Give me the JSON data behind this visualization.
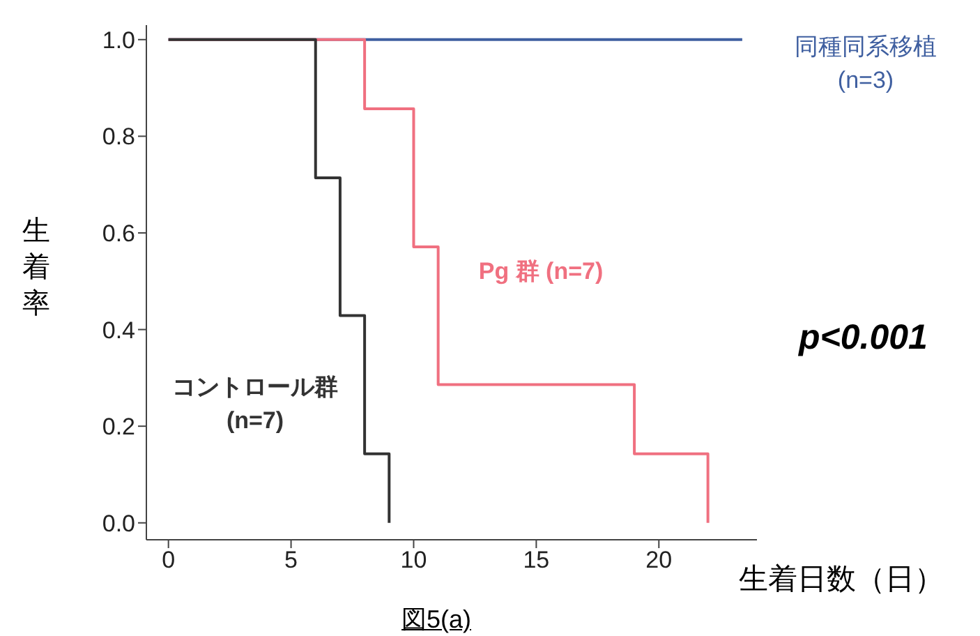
{
  "chart_data": {
    "type": "step",
    "xlabel": "生着日数（日）",
    "ylabel": "生着率",
    "xlim": [
      -0.9,
      24
    ],
    "xticks": [
      0,
      5,
      10,
      15,
      20
    ],
    "ylim": [
      -0.035,
      1.03
    ],
    "yticks": [
      {
        "value": 0,
        "label": "0.0"
      },
      {
        "value": 0.2,
        "label": "0.2"
      },
      {
        "value": 0.4,
        "label": "0.4"
      },
      {
        "value": 0.6,
        "label": "0.6"
      },
      {
        "value": 0.8,
        "label": "0.8"
      },
      {
        "value": 1,
        "label": "1.0"
      }
    ],
    "series": [
      {
        "name": "同種同系移植 (n=3)",
        "color": "#3f5fa0",
        "x": [
          0,
          23.4
        ],
        "values": [
          1,
          1
        ]
      },
      {
        "name": "Pg 群 (n=7)",
        "color": "#f07080",
        "x": [
          0,
          8,
          10,
          11,
          19,
          22
        ],
        "values": [
          1,
          0.857,
          0.571,
          0.286,
          0.143,
          0
        ]
      },
      {
        "name": "コントロール群 (n=7)",
        "color": "#333333",
        "x": [
          0,
          6,
          7,
          8,
          9
        ],
        "values": [
          1,
          0.714,
          0.429,
          0.143,
          0
        ]
      }
    ],
    "annotations": [
      "p<0.001",
      "図5(a)"
    ],
    "grid": false,
    "marker": "none",
    "line_style": "solid"
  }
}
